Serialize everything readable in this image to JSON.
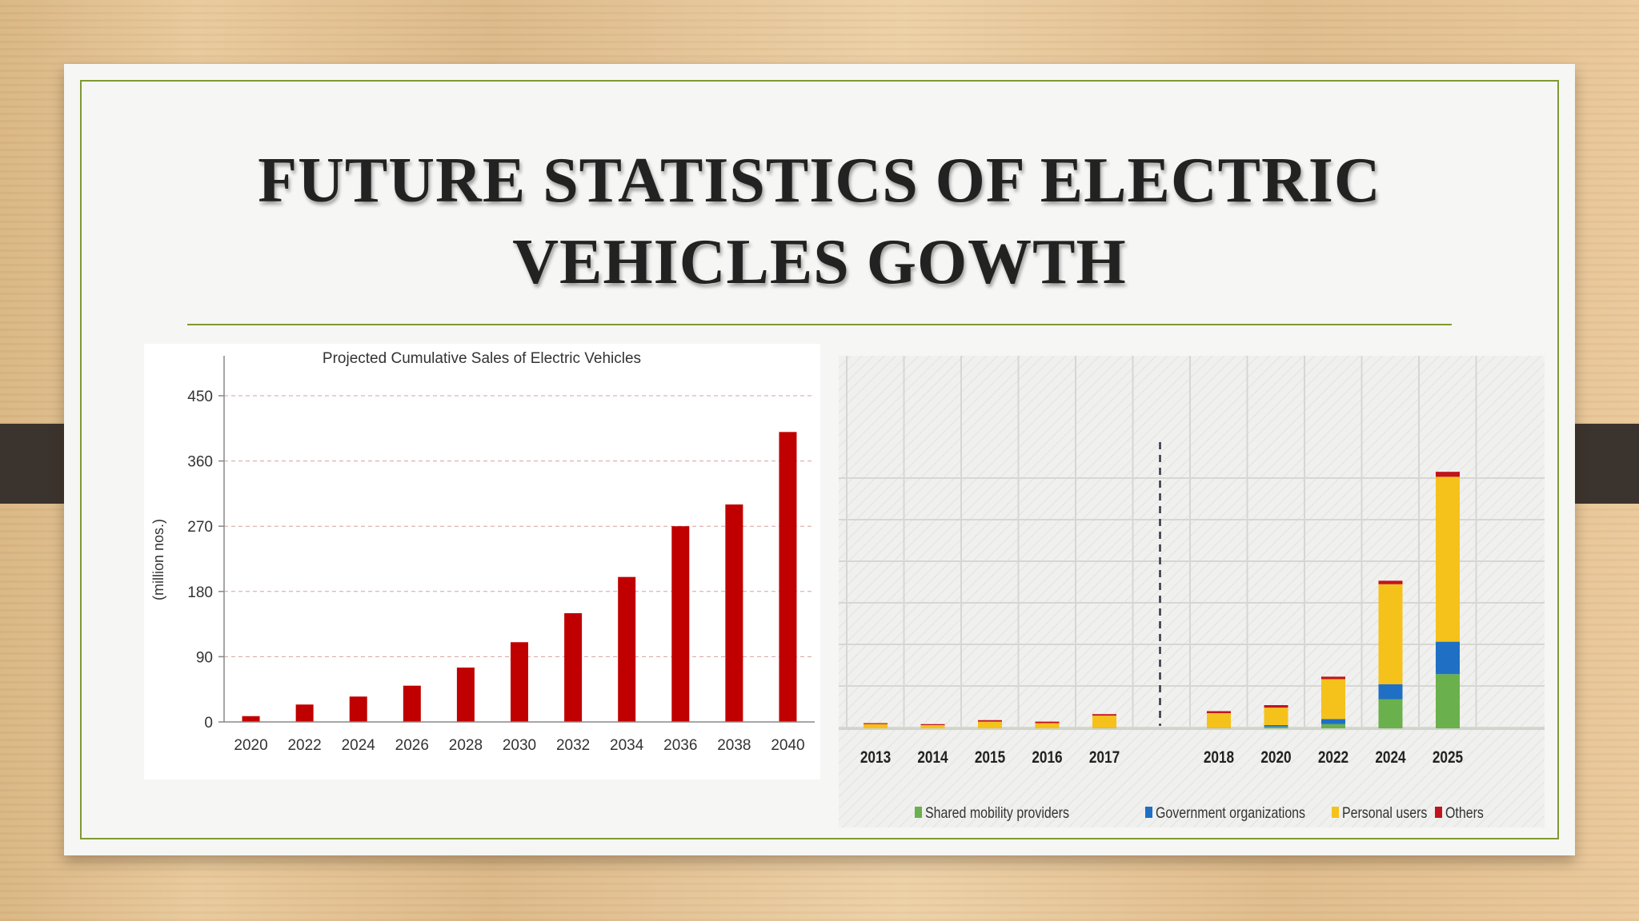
{
  "slide": {
    "title_line1": "FUTURE STATISTICS OF ELECTRIC",
    "title_line2": "VEHICLES GOWTH"
  },
  "colors": {
    "bar_red": "#c00000",
    "shared_green": "#6ab04c",
    "government_blue": "#1f6fc5",
    "personal_yellow": "#f5c21b",
    "others_red": "#c0141c",
    "accent_green": "#7f9a32"
  },
  "chart_data": [
    {
      "type": "bar",
      "title": "Projected Cumulative Sales of Electric Vehicles",
      "xlabel": "",
      "ylabel": "(million nos.)",
      "categories": [
        "2020",
        "2022",
        "2024",
        "2026",
        "2028",
        "2030",
        "2032",
        "2034",
        "2036",
        "2038",
        "2040"
      ],
      "values": [
        8,
        24,
        35,
        50,
        75,
        110,
        150,
        200,
        270,
        300,
        400
      ],
      "ylim": [
        0,
        450
      ],
      "yticks": [
        0,
        90,
        180,
        270,
        360,
        450
      ],
      "grid": true,
      "legend": "none"
    },
    {
      "type": "bar",
      "stacked": true,
      "title": "",
      "xlabel": "",
      "ylabel": "",
      "categories": [
        "2013",
        "2014",
        "2015",
        "2016",
        "2017",
        "2018",
        "2020",
        "2022",
        "2024",
        "2025"
      ],
      "series": [
        {
          "name": "Shared mobility providers",
          "values": [
            0,
            0,
            0,
            0,
            0,
            0,
            0.05,
            0.1,
            0.6,
            1.1
          ]
        },
        {
          "name": "Government organizations",
          "values": [
            0,
            0,
            0,
            0,
            0.02,
            0.02,
            0.03,
            0.1,
            0.3,
            0.65
          ]
        },
        {
          "name": "Personal users",
          "values": [
            0.1,
            0.08,
            0.15,
            0.12,
            0.25,
            0.3,
            0.35,
            0.8,
            2.0,
            3.3
          ]
        },
        {
          "name": "Others",
          "values": [
            0.02,
            0.02,
            0.03,
            0.03,
            0.03,
            0.04,
            0.05,
            0.05,
            0.07,
            0.1
          ]
        }
      ],
      "ylim": [
        0,
        6
      ],
      "divider_after": "2017",
      "grid": true,
      "legend": "bottom"
    }
  ]
}
